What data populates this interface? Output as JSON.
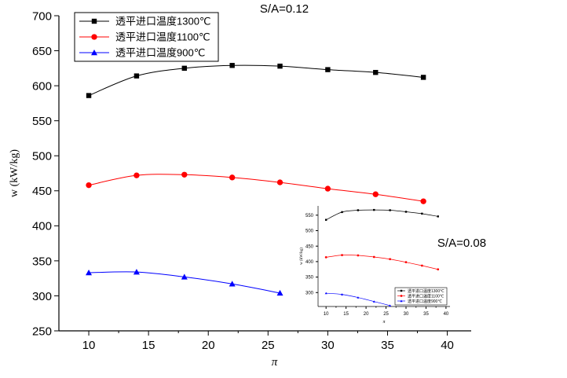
{
  "chart_data": [
    {
      "type": "line",
      "title": "S/A=0.12",
      "xlabel": "π",
      "ylabel": "w (kW/kg)",
      "xlim": [
        7.5,
        42
      ],
      "ylim": [
        250,
        700
      ],
      "xticks": [
        10,
        15,
        20,
        25,
        30,
        35,
        40
      ],
      "yticks": [
        250,
        300,
        350,
        400,
        450,
        500,
        550,
        600,
        650,
        700
      ],
      "legend_position": "top-left",
      "series": [
        {
          "name": "透平进口温度1300℃",
          "color": "#000000",
          "marker": "square",
          "x": [
            10,
            14,
            18,
            22,
            26,
            30,
            34,
            38
          ],
          "y": [
            586,
            614,
            625,
            629,
            628,
            623,
            619,
            612
          ]
        },
        {
          "name": "透平进口温度1100℃",
          "color": "#ff0000",
          "marker": "circle",
          "x": [
            10,
            14,
            18,
            22,
            26,
            30,
            34,
            38
          ],
          "y": [
            458,
            472,
            473,
            469,
            462,
            453,
            445,
            435
          ]
        },
        {
          "name": "透平进口温度900℃",
          "color": "#0000ff",
          "marker": "triangle",
          "x": [
            10,
            14,
            18,
            22,
            26
          ],
          "y": [
            333,
            334,
            327,
            317,
            304
          ]
        }
      ]
    },
    {
      "type": "line",
      "title": "S/A=0.08",
      "xlabel": "π",
      "ylabel": "w (kW/kg)",
      "xlim": [
        8,
        41
      ],
      "ylim": [
        255,
        580
      ],
      "xticks": [
        10,
        15,
        20,
        25,
        30,
        35,
        40
      ],
      "yticks": [
        300,
        350,
        400,
        450,
        500,
        550
      ],
      "legend_position": "bottom-right",
      "series": [
        {
          "name": "透平进口温度1300℃",
          "color": "#000000",
          "marker": "square",
          "x": [
            10,
            14,
            18,
            22,
            26,
            30,
            34,
            38
          ],
          "y": [
            535,
            560,
            566,
            567,
            566,
            561,
            555,
            546
          ]
        },
        {
          "name": "透平进口温度1100℃",
          "color": "#ff0000",
          "marker": "circle",
          "x": [
            10,
            14,
            18,
            22,
            26,
            30,
            34,
            38
          ],
          "y": [
            414,
            421,
            420,
            415,
            408,
            398,
            387,
            375
          ]
        },
        {
          "name": "透平进口温度900℃",
          "color": "#0000ff",
          "marker": "triangle",
          "x": [
            10,
            14,
            18,
            22,
            26
          ],
          "y": [
            298,
            294,
            284,
            271,
            258
          ]
        }
      ]
    }
  ]
}
